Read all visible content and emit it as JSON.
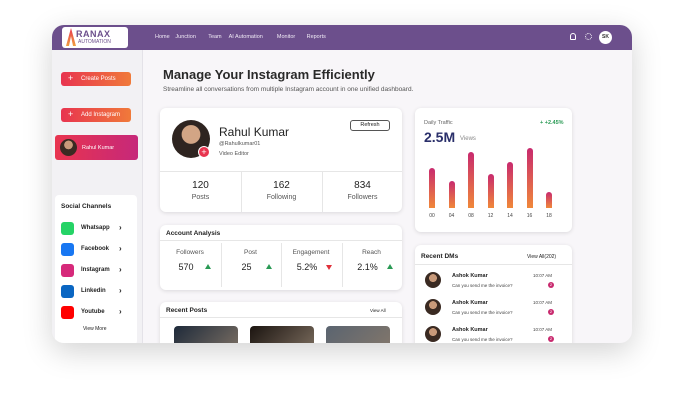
{
  "brand": {
    "name": "RANAX",
    "tagline": "AUTOMATION"
  },
  "nav": [
    "Home",
    "Junction",
    "Team",
    "AI Automation",
    "Monitor",
    "Reports"
  ],
  "user_initials": "SK",
  "sidebar": {
    "buttons": [
      "Create Posts",
      "Add Instagram"
    ],
    "account": "Rahul Kumar",
    "social_title": "Social Channels",
    "channels": [
      {
        "name": "Whatsapp",
        "color": "#25d366"
      },
      {
        "name": "Facebook",
        "color": "#1877f2"
      },
      {
        "name": "Instagram",
        "color": "#d6297a"
      },
      {
        "name": "Linkedin",
        "color": "#0a66c2"
      },
      {
        "name": "Youtube",
        "color": "#ff0000"
      }
    ],
    "more": "View More"
  },
  "header": {
    "title": "Manage Your Instagram Efficiently",
    "subtitle": "Streamline all conversations from multiple Instagram account in one unified dashboard."
  },
  "profile": {
    "name": "Rahul Kumar",
    "handle": "@Rahulkumar01",
    "role": "Video Editor",
    "refresh": "Refresh",
    "stats": [
      {
        "value": "120",
        "label": "Posts"
      },
      {
        "value": "162",
        "label": "Following"
      },
      {
        "value": "834",
        "label": "Followers"
      }
    ]
  },
  "analysis": {
    "title": "Account  Analysis",
    "items": [
      {
        "label": "Followers",
        "value": "570",
        "trend": "up"
      },
      {
        "label": "Post",
        "value": "25",
        "trend": "up"
      },
      {
        "label": "Engagement",
        "value": "5.2%",
        "trend": "down"
      },
      {
        "label": "Reach",
        "value": "2.1%",
        "trend": "up"
      }
    ]
  },
  "traffic": {
    "title": "Daily Traffic",
    "value": "2.5M",
    "unit": "Views",
    "change": "+ +2.45%",
    "chart": {
      "type": "bar",
      "categories": [
        "00",
        "04",
        "08",
        "12",
        "14",
        "16",
        "18"
      ],
      "values": [
        50,
        34,
        70,
        42,
        57,
        75,
        20
      ]
    }
  },
  "dms": {
    "title": "Recent DMs",
    "view_all": "View All(202)",
    "items": [
      {
        "name": "Ashok Kumar",
        "message": "Can you send me the invoice?",
        "time": "10:07 AM",
        "unread": "2"
      },
      {
        "name": "Ashok Kumar",
        "message": "Can you send me the invoice?",
        "time": "10:07 AM",
        "unread": "2"
      },
      {
        "name": "Ashok Kumar",
        "message": "Can you send me the invoice?",
        "time": "10:07 AM",
        "unread": "2"
      }
    ]
  },
  "posts": {
    "title": "Recent Posts",
    "view_all": "View All"
  }
}
